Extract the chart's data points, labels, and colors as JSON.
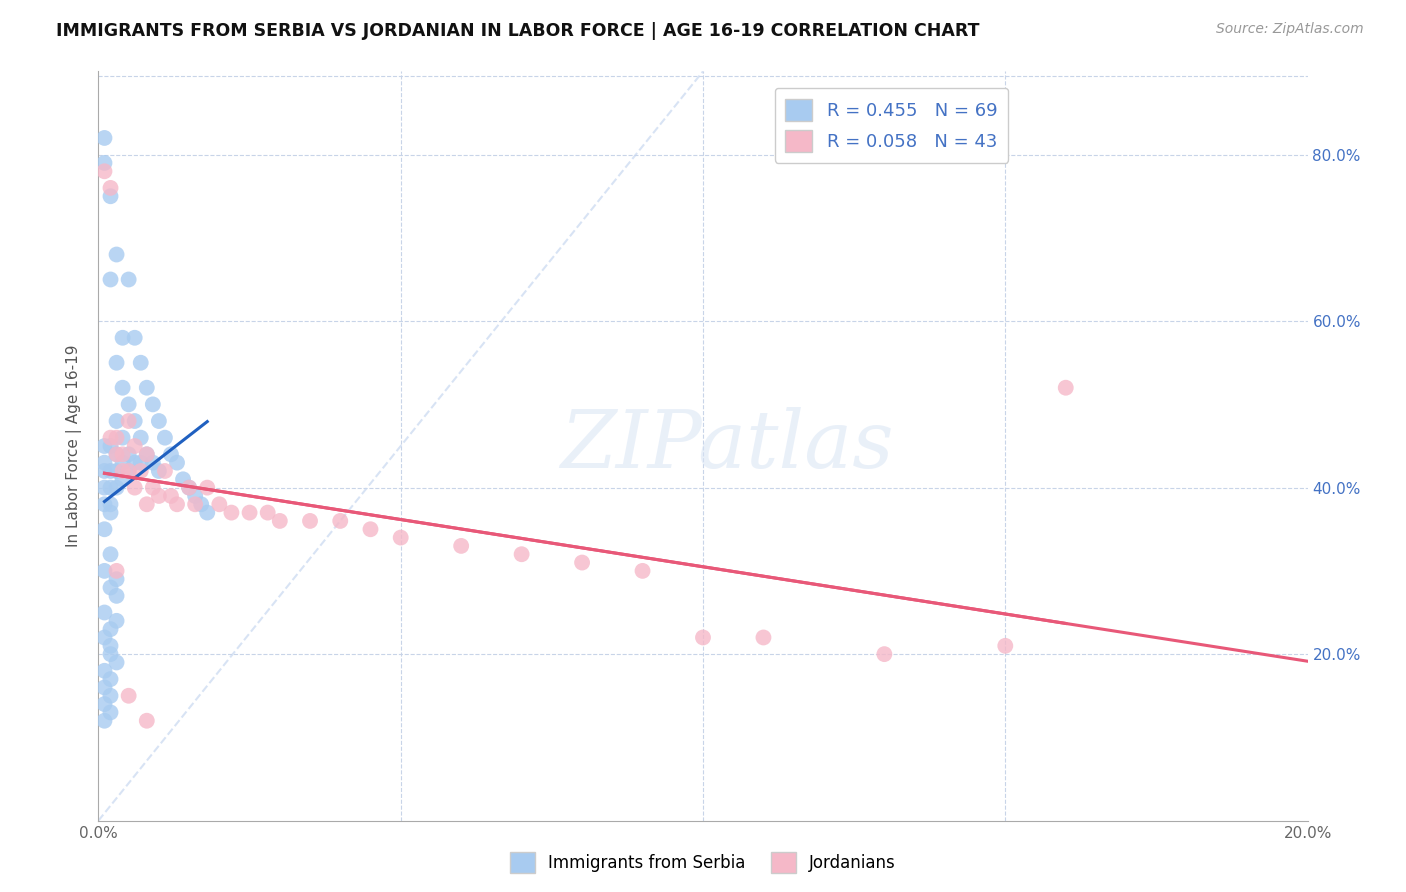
{
  "title": "IMMIGRANTS FROM SERBIA VS JORDANIAN IN LABOR FORCE | AGE 16-19 CORRELATION CHART",
  "source": "Source: ZipAtlas.com",
  "ylabel": "In Labor Force | Age 16-19",
  "xlim": [
    0.0,
    0.2
  ],
  "ylim": [
    0.0,
    0.9
  ],
  "serbia_color": "#A8CBF0",
  "jordan_color": "#F5B8C8",
  "serbia_line_color": "#2060C0",
  "jordan_line_color": "#E85878",
  "dashed_line_color": "#C8D8F0",
  "serbia_R": 0.455,
  "serbia_N": 69,
  "jordan_R": 0.058,
  "jordan_N": 43,
  "serbia_x": [
    0.001,
    0.001,
    0.001,
    0.001,
    0.001,
    0.001,
    0.001,
    0.001,
    0.002,
    0.002,
    0.002,
    0.002,
    0.002,
    0.002,
    0.002,
    0.003,
    0.003,
    0.003,
    0.003,
    0.003,
    0.003,
    0.004,
    0.004,
    0.004,
    0.004,
    0.004,
    0.005,
    0.005,
    0.005,
    0.005,
    0.006,
    0.006,
    0.006,
    0.007,
    0.007,
    0.007,
    0.008,
    0.008,
    0.009,
    0.009,
    0.01,
    0.01,
    0.011,
    0.012,
    0.013,
    0.014,
    0.015,
    0.016,
    0.017,
    0.018,
    0.001,
    0.002,
    0.002,
    0.003,
    0.001,
    0.002,
    0.003,
    0.003,
    0.001,
    0.002,
    0.002,
    0.003,
    0.001,
    0.001,
    0.002,
    0.002,
    0.001,
    0.001,
    0.002
  ],
  "serbia_y": [
    0.82,
    0.79,
    0.45,
    0.43,
    0.42,
    0.4,
    0.38,
    0.35,
    0.75,
    0.65,
    0.45,
    0.42,
    0.4,
    0.38,
    0.37,
    0.68,
    0.55,
    0.48,
    0.44,
    0.42,
    0.4,
    0.58,
    0.52,
    0.46,
    0.43,
    0.41,
    0.65,
    0.5,
    0.44,
    0.42,
    0.58,
    0.48,
    0.43,
    0.55,
    0.46,
    0.43,
    0.52,
    0.44,
    0.5,
    0.43,
    0.48,
    0.42,
    0.46,
    0.44,
    0.43,
    0.41,
    0.4,
    0.39,
    0.38,
    0.37,
    0.3,
    0.28,
    0.32,
    0.29,
    0.25,
    0.23,
    0.27,
    0.24,
    0.22,
    0.2,
    0.21,
    0.19,
    0.18,
    0.16,
    0.15,
    0.17,
    0.14,
    0.12,
    0.13
  ],
  "jordan_x": [
    0.001,
    0.002,
    0.002,
    0.003,
    0.003,
    0.004,
    0.004,
    0.005,
    0.005,
    0.006,
    0.006,
    0.007,
    0.008,
    0.008,
    0.009,
    0.01,
    0.011,
    0.012,
    0.013,
    0.015,
    0.016,
    0.018,
    0.02,
    0.022,
    0.025,
    0.028,
    0.03,
    0.035,
    0.04,
    0.045,
    0.05,
    0.06,
    0.07,
    0.08,
    0.09,
    0.1,
    0.11,
    0.13,
    0.15,
    0.16,
    0.003,
    0.005,
    0.008
  ],
  "jordan_y": [
    0.78,
    0.76,
    0.46,
    0.46,
    0.44,
    0.44,
    0.42,
    0.48,
    0.42,
    0.45,
    0.4,
    0.42,
    0.44,
    0.38,
    0.4,
    0.39,
    0.42,
    0.39,
    0.38,
    0.4,
    0.38,
    0.4,
    0.38,
    0.37,
    0.37,
    0.37,
    0.36,
    0.36,
    0.36,
    0.35,
    0.34,
    0.33,
    0.32,
    0.31,
    0.3,
    0.22,
    0.22,
    0.2,
    0.21,
    0.52,
    0.3,
    0.15,
    0.12
  ],
  "right_ytick_labels": [
    "80.0%",
    "60.0%",
    "40.0%",
    "20.0%"
  ],
  "right_ytick_vals": [
    0.8,
    0.6,
    0.4,
    0.2
  ],
  "xtick_labels": [
    "0.0%",
    "",
    "",
    "",
    "20.0%"
  ],
  "xtick_vals": [
    0.0,
    0.05,
    0.1,
    0.15,
    0.2
  ],
  "watermark": "ZIPatlas",
  "background_color": "#FFFFFF",
  "grid_color": "#C8D4E8"
}
